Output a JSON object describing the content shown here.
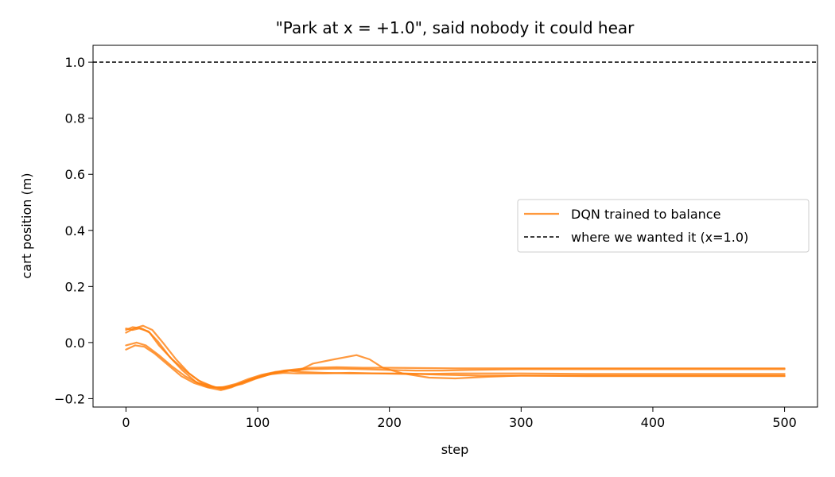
{
  "chart_data": {
    "type": "line",
    "title": "\"Park at x = +1.0\", said nobody it could hear",
    "xlabel": "step",
    "ylabel": "cart position (m)",
    "xlim": [
      -25,
      525
    ],
    "ylim": [
      -0.23,
      1.06
    ],
    "xticks": [
      0,
      100,
      200,
      300,
      400,
      500
    ],
    "yticks": [
      -0.2,
      0.0,
      0.2,
      0.4,
      0.6,
      0.8,
      1.0
    ],
    "xtick_labels": [
      "0",
      "100",
      "200",
      "300",
      "400",
      "500"
    ],
    "ytick_labels": [
      "−0.2",
      "0.0",
      "0.2",
      "0.4",
      "0.6",
      "0.8",
      "1.0"
    ],
    "grid": false,
    "legend": {
      "placement": "center-right",
      "entries": [
        "DQN trained to balance",
        "where we wanted it (x=1.0)"
      ]
    },
    "colors": {
      "series": "#ff7f0e",
      "reference": "#000000"
    },
    "series": [
      {
        "points": [
          [
            0,
            0.045
          ],
          [
            5,
            0.055
          ],
          [
            12,
            0.05
          ],
          [
            18,
            0.035
          ],
          [
            25,
            -0.01
          ],
          [
            35,
            -0.06
          ],
          [
            45,
            -0.1
          ],
          [
            55,
            -0.135
          ],
          [
            65,
            -0.155
          ],
          [
            72,
            -0.165
          ],
          [
            80,
            -0.155
          ],
          [
            90,
            -0.14
          ],
          [
            100,
            -0.125
          ],
          [
            110,
            -0.11
          ],
          [
            120,
            -0.1
          ],
          [
            130,
            -0.095
          ],
          [
            140,
            -0.09
          ],
          [
            160,
            -0.088
          ],
          [
            180,
            -0.09
          ],
          [
            200,
            -0.09
          ],
          [
            250,
            -0.092
          ],
          [
            300,
            -0.092
          ],
          [
            350,
            -0.092
          ],
          [
            400,
            -0.092
          ],
          [
            450,
            -0.092
          ],
          [
            500,
            -0.092
          ]
        ]
      },
      {
        "points": [
          [
            0,
            0.035
          ],
          [
            6,
            0.05
          ],
          [
            13,
            0.06
          ],
          [
            20,
            0.045
          ],
          [
            28,
            0.0
          ],
          [
            38,
            -0.06
          ],
          [
            48,
            -0.11
          ],
          [
            58,
            -0.145
          ],
          [
            68,
            -0.16
          ],
          [
            78,
            -0.158
          ],
          [
            88,
            -0.148
          ],
          [
            98,
            -0.13
          ],
          [
            108,
            -0.115
          ],
          [
            118,
            -0.105
          ],
          [
            125,
            -0.1
          ],
          [
            132,
            -0.098
          ],
          [
            142,
            -0.075
          ],
          [
            158,
            -0.06
          ],
          [
            175,
            -0.045
          ],
          [
            185,
            -0.06
          ],
          [
            195,
            -0.09
          ],
          [
            210,
            -0.11
          ],
          [
            230,
            -0.125
          ],
          [
            250,
            -0.128
          ],
          [
            275,
            -0.122
          ],
          [
            300,
            -0.118
          ],
          [
            350,
            -0.118
          ],
          [
            400,
            -0.118
          ],
          [
            450,
            -0.118
          ],
          [
            500,
            -0.118
          ]
        ]
      },
      {
        "points": [
          [
            0,
            -0.01
          ],
          [
            8,
            0.0
          ],
          [
            15,
            -0.01
          ],
          [
            25,
            -0.045
          ],
          [
            35,
            -0.085
          ],
          [
            45,
            -0.12
          ],
          [
            55,
            -0.145
          ],
          [
            65,
            -0.158
          ],
          [
            75,
            -0.165
          ],
          [
            85,
            -0.15
          ],
          [
            95,
            -0.13
          ],
          [
            105,
            -0.115
          ],
          [
            115,
            -0.105
          ],
          [
            125,
            -0.1
          ],
          [
            140,
            -0.095
          ],
          [
            160,
            -0.093
          ],
          [
            180,
            -0.095
          ],
          [
            200,
            -0.098
          ],
          [
            220,
            -0.1
          ],
          [
            240,
            -0.1
          ],
          [
            260,
            -0.098
          ],
          [
            300,
            -0.095
          ],
          [
            350,
            -0.095
          ],
          [
            400,
            -0.095
          ],
          [
            450,
            -0.095
          ],
          [
            500,
            -0.095
          ]
        ]
      },
      {
        "points": [
          [
            0,
            -0.025
          ],
          [
            7,
            -0.01
          ],
          [
            14,
            -0.015
          ],
          [
            22,
            -0.04
          ],
          [
            32,
            -0.08
          ],
          [
            42,
            -0.12
          ],
          [
            52,
            -0.145
          ],
          [
            62,
            -0.16
          ],
          [
            72,
            -0.17
          ],
          [
            80,
            -0.16
          ],
          [
            90,
            -0.14
          ],
          [
            100,
            -0.125
          ],
          [
            110,
            -0.113
          ],
          [
            120,
            -0.108
          ],
          [
            130,
            -0.11
          ],
          [
            150,
            -0.11
          ],
          [
            170,
            -0.108
          ],
          [
            190,
            -0.11
          ],
          [
            210,
            -0.112
          ],
          [
            230,
            -0.112
          ],
          [
            250,
            -0.11
          ],
          [
            300,
            -0.11
          ],
          [
            350,
            -0.112
          ],
          [
            400,
            -0.112
          ],
          [
            450,
            -0.112
          ],
          [
            500,
            -0.112
          ]
        ]
      },
      {
        "points": [
          [
            0,
            0.05
          ],
          [
            5,
            0.045
          ],
          [
            10,
            0.05
          ],
          [
            17,
            0.04
          ],
          [
            24,
            0.005
          ],
          [
            33,
            -0.05
          ],
          [
            43,
            -0.1
          ],
          [
            53,
            -0.14
          ],
          [
            63,
            -0.16
          ],
          [
            73,
            -0.16
          ],
          [
            83,
            -0.148
          ],
          [
            93,
            -0.13
          ],
          [
            103,
            -0.115
          ],
          [
            113,
            -0.105
          ],
          [
            123,
            -0.1
          ],
          [
            133,
            -0.105
          ],
          [
            150,
            -0.108
          ],
          [
            170,
            -0.11
          ],
          [
            190,
            -0.11
          ],
          [
            210,
            -0.11
          ],
          [
            240,
            -0.115
          ],
          [
            270,
            -0.118
          ],
          [
            300,
            -0.118
          ],
          [
            350,
            -0.12
          ],
          [
            400,
            -0.12
          ],
          [
            450,
            -0.12
          ],
          [
            500,
            -0.12
          ]
        ]
      }
    ],
    "reference_line": {
      "y": 1.0
    }
  }
}
